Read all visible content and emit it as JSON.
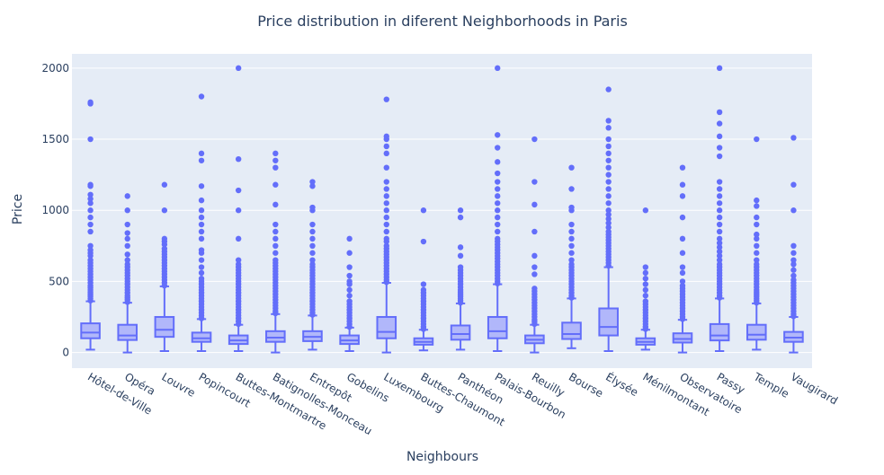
{
  "chart_data": {
    "type": "box",
    "title": "Price distribution in diferent Neighborhoods in Paris",
    "xlabel": "Neighbours",
    "ylabel": "Price",
    "ylim": [
      -110,
      2100
    ],
    "yticks": [
      0,
      500,
      1000,
      1500,
      2000
    ],
    "grid": true,
    "legend": "none",
    "colors": {
      "box": "#636efa",
      "fill": "#a8aefa",
      "plot_bg": "#e5ecf6",
      "grid": "#ffffff",
      "text": "#2a3f5f"
    },
    "categories": [
      "Hôtel-de-Ville",
      "Opéra",
      "Louvre",
      "Popincourt",
      "Buttes-Montmartre",
      "Batignolles-Monceau",
      "Entrepôt",
      "Gobelins",
      "Luxembourg",
      "Buttes-Chaumont",
      "Panthéon",
      "Palais-Bourbon",
      "Reuilly",
      "Bourse",
      "Élysée",
      "Ménilmontant",
      "Observatoire",
      "Passy",
      "Temple",
      "Vaugirard"
    ],
    "boxes": [
      {
        "q1": 100,
        "median": 140,
        "q3": 205,
        "lower_fence": 20,
        "upper_fence": 360,
        "outliers": [
          365,
          380,
          395,
          410,
          425,
          440,
          455,
          470,
          490,
          510,
          530,
          550,
          570,
          590,
          610,
          630,
          650,
          680,
          700,
          720,
          750,
          850,
          900,
          950,
          1000,
          1050,
          1080,
          1110,
          1170,
          1180,
          1500,
          1750,
          1760
        ]
      },
      {
        "q1": 88,
        "median": 120,
        "q3": 195,
        "lower_fence": 0,
        "upper_fence": 350,
        "outliers": [
          355,
          370,
          385,
          400,
          420,
          440,
          460,
          480,
          500,
          520,
          540,
          560,
          580,
          600,
          620,
          650,
          690,
          750,
          800,
          840,
          900,
          1000,
          1100
        ]
      },
      {
        "q1": 110,
        "median": 160,
        "q3": 250,
        "lower_fence": 10,
        "upper_fence": 465,
        "outliers": [
          470,
          490,
          510,
          530,
          550,
          570,
          590,
          610,
          630,
          650,
          670,
          690,
          710,
          730,
          760,
          780,
          800,
          1000,
          1180
        ]
      },
      {
        "q1": 75,
        "median": 100,
        "q3": 140,
        "lower_fence": 10,
        "upper_fence": 235,
        "outliers": [
          240,
          260,
          280,
          300,
          320,
          340,
          360,
          380,
          400,
          420,
          440,
          460,
          480,
          500,
          520,
          560,
          600,
          650,
          700,
          720,
          800,
          850,
          900,
          950,
          1000,
          1070,
          1170,
          1350,
          1400,
          1800
        ]
      },
      {
        "q1": 60,
        "median": 85,
        "q3": 120,
        "lower_fence": 10,
        "upper_fence": 195,
        "outliers": [
          200,
          220,
          240,
          260,
          280,
          300,
          320,
          340,
          360,
          380,
          400,
          420,
          440,
          460,
          480,
          500,
          520,
          540,
          560,
          580,
          600,
          620,
          650,
          800,
          1000,
          1140,
          1360,
          2000
        ]
      },
      {
        "q1": 75,
        "median": 105,
        "q3": 150,
        "lower_fence": 0,
        "upper_fence": 270,
        "outliers": [
          275,
          290,
          310,
          330,
          350,
          370,
          390,
          410,
          430,
          450,
          470,
          490,
          510,
          530,
          550,
          570,
          590,
          610,
          630,
          650,
          700,
          750,
          800,
          850,
          900,
          1040,
          1180,
          1300,
          1350,
          1400
        ]
      },
      {
        "q1": 80,
        "median": 110,
        "q3": 150,
        "lower_fence": 20,
        "upper_fence": 260,
        "outliers": [
          265,
          280,
          300,
          320,
          340,
          360,
          380,
          400,
          420,
          440,
          460,
          480,
          500,
          520,
          540,
          560,
          580,
          600,
          620,
          650,
          700,
          750,
          800,
          850,
          900,
          1000,
          1020,
          1170,
          1200
        ]
      },
      {
        "q1": 60,
        "median": 85,
        "q3": 120,
        "lower_fence": 10,
        "upper_fence": 175,
        "outliers": [
          180,
          200,
          220,
          240,
          260,
          280,
          300,
          320,
          340,
          360,
          400,
          440,
          480,
          500,
          540,
          600,
          700,
          800
        ]
      },
      {
        "q1": 100,
        "median": 145,
        "q3": 250,
        "lower_fence": 0,
        "upper_fence": 490,
        "outliers": [
          495,
          510,
          530,
          550,
          570,
          590,
          610,
          630,
          650,
          670,
          690,
          710,
          730,
          750,
          780,
          800,
          850,
          900,
          950,
          1000,
          1050,
          1100,
          1150,
          1200,
          1300,
          1400,
          1450,
          1500,
          1520,
          1780
        ]
      },
      {
        "q1": 55,
        "median": 75,
        "q3": 100,
        "lower_fence": 15,
        "upper_fence": 160,
        "outliers": [
          165,
          180,
          200,
          220,
          240,
          260,
          280,
          300,
          320,
          340,
          360,
          380,
          400,
          420,
          440,
          480,
          780,
          1000
        ]
      },
      {
        "q1": 90,
        "median": 130,
        "q3": 190,
        "lower_fence": 20,
        "upper_fence": 345,
        "outliers": [
          350,
          365,
          380,
          395,
          410,
          425,
          440,
          460,
          480,
          500,
          520,
          540,
          560,
          580,
          600,
          680,
          740,
          950,
          1000
        ]
      },
      {
        "q1": 100,
        "median": 150,
        "q3": 250,
        "lower_fence": 10,
        "upper_fence": 480,
        "outliers": [
          485,
          500,
          520,
          540,
          560,
          580,
          600,
          620,
          640,
          660,
          680,
          700,
          720,
          740,
          760,
          780,
          800,
          850,
          900,
          950,
          1000,
          1050,
          1100,
          1150,
          1200,
          1260,
          1340,
          1440,
          1530,
          2000
        ]
      },
      {
        "q1": 65,
        "median": 90,
        "q3": 120,
        "lower_fence": 0,
        "upper_fence": 195,
        "outliers": [
          200,
          215,
          230,
          250,
          270,
          290,
          310,
          330,
          350,
          370,
          390,
          410,
          430,
          450,
          550,
          600,
          680,
          850,
          1040,
          1200,
          1500
        ]
      },
      {
        "q1": 95,
        "median": 130,
        "q3": 210,
        "lower_fence": 30,
        "upper_fence": 380,
        "outliers": [
          385,
          400,
          420,
          440,
          460,
          480,
          500,
          520,
          540,
          560,
          580,
          600,
          620,
          650,
          700,
          750,
          800,
          850,
          900,
          1000,
          1020,
          1150,
          1300
        ]
      },
      {
        "q1": 120,
        "median": 180,
        "q3": 310,
        "lower_fence": 10,
        "upper_fence": 600,
        "outliers": [
          610,
          630,
          650,
          670,
          690,
          710,
          730,
          750,
          770,
          790,
          810,
          830,
          850,
          880,
          910,
          940,
          970,
          1000,
          1050,
          1100,
          1150,
          1200,
          1250,
          1300,
          1350,
          1400,
          1450,
          1500,
          1580,
          1630,
          1850
        ]
      },
      {
        "q1": 55,
        "median": 75,
        "q3": 100,
        "lower_fence": 20,
        "upper_fence": 160,
        "outliers": [
          165,
          180,
          200,
          220,
          240,
          260,
          280,
          300,
          320,
          340,
          360,
          400,
          440,
          480,
          520,
          560,
          600,
          1000
        ]
      },
      {
        "q1": 70,
        "median": 95,
        "q3": 135,
        "lower_fence": 0,
        "upper_fence": 230,
        "outliers": [
          235,
          250,
          270,
          290,
          310,
          330,
          350,
          370,
          390,
          410,
          430,
          450,
          470,
          500,
          560,
          600,
          700,
          800,
          950,
          1100,
          1180,
          1300
        ]
      },
      {
        "q1": 85,
        "median": 120,
        "q3": 200,
        "lower_fence": 10,
        "upper_fence": 380,
        "outliers": [
          385,
          400,
          420,
          440,
          460,
          480,
          500,
          520,
          540,
          560,
          580,
          600,
          620,
          650,
          680,
          710,
          740,
          770,
          800,
          850,
          900,
          950,
          1000,
          1050,
          1100,
          1150,
          1200,
          1380,
          1440,
          1520,
          1610,
          1690,
          2000
        ]
      },
      {
        "q1": 90,
        "median": 125,
        "q3": 195,
        "lower_fence": 20,
        "upper_fence": 345,
        "outliers": [
          350,
          365,
          380,
          395,
          410,
          425,
          440,
          460,
          480,
          500,
          520,
          540,
          560,
          580,
          600,
          620,
          650,
          700,
          750,
          800,
          830,
          900,
          950,
          1030,
          1070,
          1500
        ]
      },
      {
        "q1": 75,
        "median": 105,
        "q3": 145,
        "lower_fence": 0,
        "upper_fence": 250,
        "outliers": [
          255,
          270,
          290,
          310,
          330,
          350,
          370,
          390,
          410,
          430,
          450,
          470,
          490,
          510,
          540,
          580,
          620,
          650,
          700,
          750,
          1000,
          1180,
          1510
        ]
      }
    ]
  }
}
